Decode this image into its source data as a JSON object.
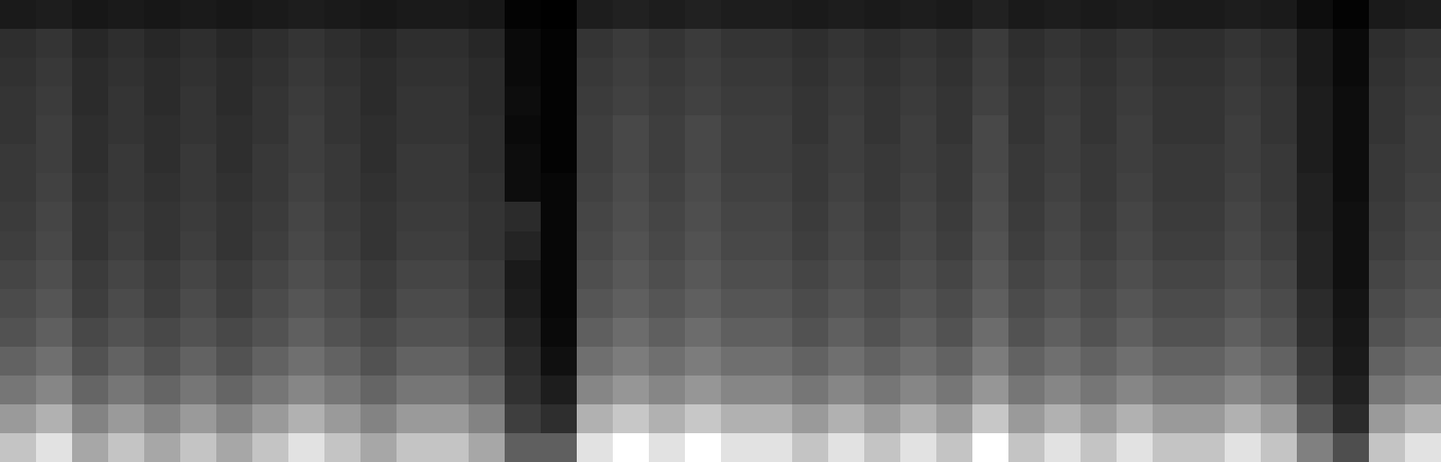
{
  "chart_data": {
    "type": "heatmap",
    "tick_labels": false,
    "grid": false,
    "z": [
      [
        61,
        70,
        52,
        61,
        52,
        61,
        52,
        61,
        70,
        61,
        52,
        61,
        61,
        52,
        30,
        30,
        70,
        79,
        70,
        79,
        70,
        70,
        61,
        70,
        61,
        70,
        61,
        79,
        61,
        70,
        61,
        70,
        61,
        61,
        70,
        61,
        40,
        25,
        61,
        70
      ],
      [
        48,
        55,
        41,
        48,
        41,
        48,
        41,
        48,
        55,
        48,
        41,
        48,
        48,
        41,
        20,
        15,
        55,
        62,
        55,
        62,
        55,
        55,
        48,
        55,
        48,
        55,
        48,
        62,
        48,
        55,
        48,
        55,
        48,
        48,
        55,
        48,
        28,
        14,
        48,
        55
      ],
      [
        37,
        42,
        32,
        37,
        32,
        37,
        32,
        37,
        42,
        37,
        32,
        37,
        37,
        32,
        16,
        10,
        42,
        47,
        42,
        47,
        42,
        42,
        37,
        42,
        37,
        42,
        37,
        47,
        37,
        42,
        37,
        42,
        37,
        37,
        42,
        37,
        21,
        11,
        37,
        42
      ],
      [
        31,
        35,
        26,
        31,
        26,
        31,
        26,
        31,
        35,
        31,
        26,
        31,
        31,
        26,
        14,
        6,
        35,
        39,
        35,
        39,
        35,
        35,
        31,
        35,
        31,
        35,
        31,
        39,
        31,
        35,
        31,
        35,
        31,
        31,
        35,
        31,
        18,
        9,
        31,
        35
      ],
      [
        26,
        30,
        23,
        26,
        23,
        26,
        23,
        26,
        30,
        26,
        23,
        26,
        26,
        23,
        12,
        4,
        30,
        34,
        30,
        34,
        30,
        30,
        26,
        30,
        26,
        30,
        26,
        34,
        26,
        30,
        26,
        30,
        26,
        26,
        30,
        26,
        15,
        8,
        26,
        30
      ],
      [
        24,
        27,
        20,
        24,
        20,
        24,
        20,
        24,
        27,
        24,
        20,
        24,
        24,
        20,
        10,
        3,
        27,
        30,
        27,
        30,
        27,
        27,
        24,
        27,
        24,
        27,
        24,
        30,
        24,
        27,
        24,
        27,
        24,
        24,
        27,
        24,
        14,
        7,
        24,
        27
      ],
      [
        22,
        25,
        19,
        22,
        19,
        22,
        19,
        22,
        25,
        22,
        19,
        22,
        22,
        19,
        9,
        3,
        25,
        28,
        25,
        28,
        25,
        25,
        22,
        25,
        22,
        25,
        22,
        28,
        22,
        25,
        22,
        25,
        22,
        22,
        25,
        22,
        12,
        6,
        22,
        25
      ],
      [
        20,
        23,
        17,
        20,
        17,
        20,
        17,
        20,
        23,
        20,
        17,
        20,
        20,
        17,
        12,
        3,
        23,
        26,
        23,
        26,
        23,
        23,
        20,
        23,
        20,
        23,
        20,
        26,
        20,
        23,
        20,
        23,
        20,
        20,
        23,
        20,
        12,
        6,
        20,
        23
      ],
      [
        19,
        22,
        17,
        19,
        17,
        19,
        17,
        19,
        22,
        19,
        17,
        19,
        19,
        17,
        14,
        3,
        22,
        25,
        22,
        25,
        22,
        22,
        19,
        22,
        19,
        22,
        19,
        25,
        19,
        22,
        19,
        22,
        19,
        19,
        22,
        19,
        11,
        6,
        19,
        22
      ],
      [
        18,
        21,
        16,
        18,
        16,
        18,
        16,
        18,
        21,
        18,
        16,
        18,
        18,
        16,
        5,
        3,
        21,
        24,
        21,
        24,
        21,
        21,
        18,
        21,
        18,
        21,
        18,
        24,
        18,
        21,
        18,
        21,
        18,
        18,
        21,
        18,
        11,
        5,
        18,
        21
      ],
      [
        18,
        20,
        15,
        18,
        15,
        18,
        15,
        18,
        20,
        18,
        15,
        18,
        18,
        15,
        5,
        2,
        20,
        23,
        20,
        23,
        20,
        20,
        18,
        20,
        18,
        20,
        18,
        23,
        18,
        20,
        18,
        20,
        18,
        18,
        20,
        18,
        10,
        5,
        18,
        20
      ],
      [
        17,
        20,
        15,
        17,
        15,
        17,
        15,
        17,
        20,
        17,
        15,
        17,
        17,
        15,
        4,
        2,
        20,
        23,
        20,
        23,
        20,
        20,
        17,
        20,
        17,
        20,
        17,
        23,
        17,
        20,
        17,
        20,
        17,
        17,
        20,
        17,
        10,
        5,
        17,
        20
      ],
      [
        17,
        19,
        14,
        17,
        14,
        17,
        14,
        17,
        19,
        17,
        14,
        17,
        17,
        14,
        5,
        2,
        19,
        21,
        19,
        21,
        19,
        19,
        17,
        19,
        17,
        19,
        17,
        21,
        17,
        19,
        17,
        19,
        17,
        17,
        19,
        17,
        10,
        5,
        17,
        19
      ],
      [
        16,
        18,
        14,
        16,
        14,
        16,
        14,
        16,
        18,
        16,
        14,
        16,
        16,
        14,
        4,
        2,
        18,
        20,
        18,
        20,
        18,
        18,
        16,
        18,
        16,
        18,
        16,
        20,
        16,
        18,
        16,
        18,
        16,
        16,
        18,
        16,
        9,
        4,
        16,
        18
      ],
      [
        15,
        17,
        13,
        15,
        13,
        15,
        13,
        15,
        17,
        15,
        13,
        15,
        15,
        13,
        4,
        2,
        17,
        19,
        17,
        19,
        17,
        17,
        15,
        17,
        15,
        17,
        15,
        19,
        15,
        17,
        15,
        17,
        15,
        15,
        17,
        15,
        9,
        4,
        15,
        17
      ],
      [
        9,
        10,
        8,
        9,
        8,
        9,
        8,
        9,
        10,
        9,
        8,
        9,
        9,
        8,
        2,
        1,
        10,
        11,
        10,
        11,
        10,
        10,
        9,
        10,
        9,
        10,
        9,
        11,
        9,
        10,
        9,
        10,
        9,
        9,
        10,
        9,
        5,
        2,
        9,
        10
      ]
    ]
  }
}
